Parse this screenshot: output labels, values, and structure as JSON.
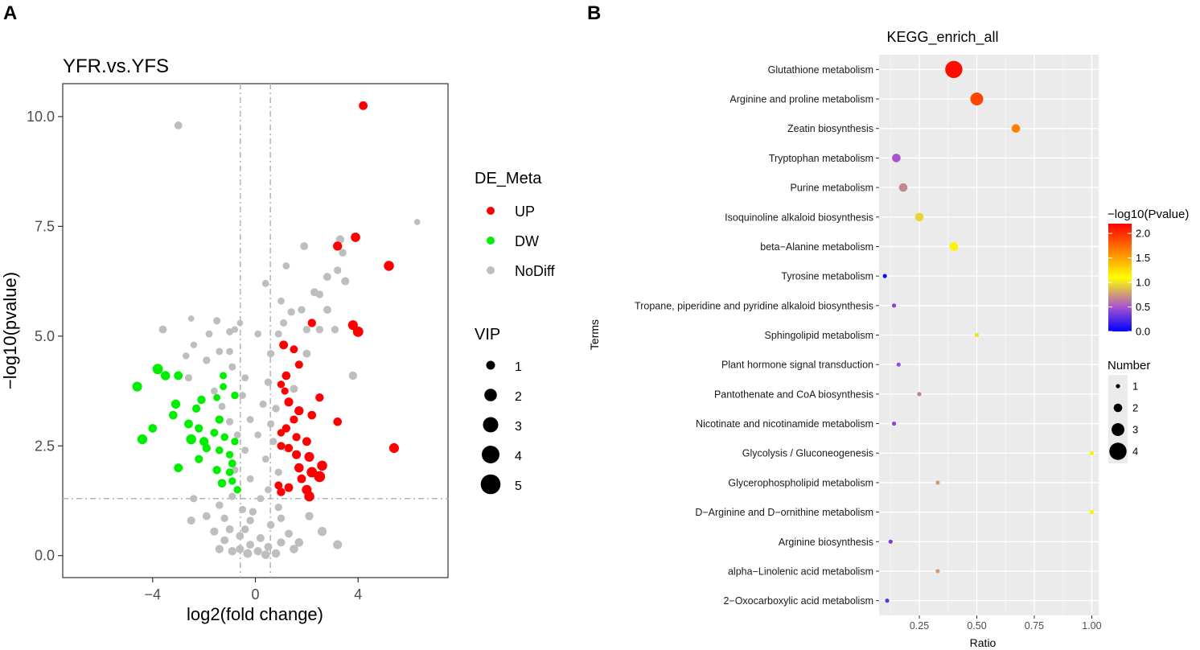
{
  "panel_labels": {
    "a": "A",
    "b": "B"
  },
  "colors": {
    "up": "#ff0000",
    "dw": "#00ee00",
    "nodiff": "#bebebe",
    "panel_bg": "#ebebeb",
    "grid": "#ffffff",
    "ref_line": "#b3b3b3",
    "gradient": [
      "#0000ff",
      "#aa55cc",
      "#ffff00",
      "#ff7f00",
      "#ff0000"
    ]
  },
  "chart_data": [
    {
      "type": "scatter",
      "title": "YFR.vs.YFS",
      "xlabel": "log2(fold change)",
      "ylabel": "−log10(pvalue)",
      "xlim": [
        -7.5,
        7.5
      ],
      "ylim": [
        -0.5,
        10.75
      ],
      "x_ticks": [
        -4,
        0,
        4
      ],
      "x_tick_labels": [
        "−4",
        "0",
        "4"
      ],
      "y_ticks": [
        0,
        2.5,
        5,
        7.5,
        10
      ],
      "y_tick_labels": [
        "0.0",
        "2.5",
        "5.0",
        "7.5",
        "10.0"
      ],
      "threshold_x": [
        -0.585,
        0.585
      ],
      "threshold_y": 1.301,
      "grid": false,
      "legend_color": {
        "title": "DE_Meta",
        "items": [
          {
            "label": "UP",
            "key": "UP"
          },
          {
            "label": "DW",
            "key": "DW"
          },
          {
            "label": "NoDiff",
            "key": "NoDiff"
          }
        ]
      },
      "legend_size": {
        "title": "VIP",
        "values": [
          1,
          2,
          3,
          4,
          5
        ],
        "labels": [
          "1",
          "2",
          "3",
          "4",
          "5"
        ]
      },
      "series": [
        {
          "name": "UP",
          "points": [
            [
              4.2,
              10.25,
              2.4
            ],
            [
              3.9,
              7.25,
              2.8
            ],
            [
              3.2,
              7.05,
              2.6
            ],
            [
              5.2,
              6.6,
              3.2
            ],
            [
              3.8,
              5.25,
              3.0
            ],
            [
              4.0,
              5.1,
              3.4
            ],
            [
              2.2,
              5.3,
              2.2
            ],
            [
              1.1,
              4.8,
              2.4
            ],
            [
              1.5,
              4.7,
              2.0
            ],
            [
              1.7,
              4.35,
              2.1
            ],
            [
              1.2,
              4.1,
              2.3
            ],
            [
              1.0,
              3.9,
              1.8
            ],
            [
              1.15,
              3.75,
              1.7
            ],
            [
              1.3,
              3.5,
              2.5
            ],
            [
              2.5,
              3.6,
              2.2
            ],
            [
              1.7,
              3.3,
              2.6
            ],
            [
              2.2,
              3.2,
              2.3
            ],
            [
              1.5,
              3.1,
              2.1
            ],
            [
              3.2,
              3.05,
              2.3
            ],
            [
              1.2,
              2.9,
              2.2
            ],
            [
              1.0,
              2.8,
              1.8
            ],
            [
              1.6,
              2.7,
              2.1
            ],
            [
              2.0,
              2.6,
              2.4
            ],
            [
              1.0,
              2.5,
              2.0
            ],
            [
              1.3,
              2.45,
              2.2
            ],
            [
              5.4,
              2.45,
              3.0
            ],
            [
              1.6,
              2.3,
              2.5
            ],
            [
              2.1,
              2.25,
              3.0
            ],
            [
              2.6,
              2.05,
              3.2
            ],
            [
              1.7,
              2.0,
              2.7
            ],
            [
              2.2,
              1.9,
              3.4
            ],
            [
              2.5,
              1.8,
              3.8
            ],
            [
              1.8,
              1.75,
              2.4
            ],
            [
              0.9,
              1.6,
              2.0
            ],
            [
              1.3,
              1.55,
              2.4
            ],
            [
              2.0,
              1.5,
              3.0
            ],
            [
              1.0,
              1.45,
              2.2
            ],
            [
              2.1,
              1.35,
              3.2
            ]
          ]
        },
        {
          "name": "DW",
          "points": [
            [
              -4.6,
              3.85,
              3.0
            ],
            [
              -3.8,
              4.25,
              3.4
            ],
            [
              -3.5,
              4.1,
              2.7
            ],
            [
              -3.0,
              4.1,
              2.4
            ],
            [
              -1.25,
              4.1,
              1.7
            ],
            [
              -1.25,
              3.85,
              1.6
            ],
            [
              -3.1,
              3.45,
              2.6
            ],
            [
              -2.1,
              3.55,
              2.2
            ],
            [
              -2.3,
              3.35,
              2.1
            ],
            [
              -0.8,
              3.65,
              1.8
            ],
            [
              -1.5,
              3.6,
              1.6
            ],
            [
              -3.2,
              3.2,
              2.3
            ],
            [
              -4.0,
              2.9,
              2.3
            ],
            [
              -1.4,
              3.1,
              2.2
            ],
            [
              -2.6,
              3.0,
              2.4
            ],
            [
              -2.2,
              2.9,
              2.2
            ],
            [
              -1.6,
              2.8,
              2.0
            ],
            [
              -1.2,
              2.7,
              1.9
            ],
            [
              -4.4,
              2.65,
              3.1
            ],
            [
              -2.5,
              2.65,
              3.2
            ],
            [
              -2.0,
              2.6,
              2.6
            ],
            [
              -1.9,
              2.45,
              2.2
            ],
            [
              -1.4,
              2.4,
              1.9
            ],
            [
              -1.0,
              2.3,
              1.8
            ],
            [
              -2.2,
              2.2,
              2.1
            ],
            [
              -0.9,
              2.1,
              2.0
            ],
            [
              -3.0,
              2.0,
              2.4
            ],
            [
              -1.5,
              1.95,
              2.2
            ],
            [
              -1.0,
              1.9,
              1.9
            ],
            [
              -0.9,
              1.7,
              1.8
            ],
            [
              -1.3,
              1.65,
              2.3
            ],
            [
              -0.7,
              1.5,
              1.8
            ],
            [
              -0.8,
              2.6,
              1.8
            ]
          ]
        },
        {
          "name": "NoDiff",
          "points": [
            [
              -3.0,
              9.8,
              2.0
            ],
            [
              6.3,
              7.6,
              1.2
            ],
            [
              3.3,
              7.2,
              2.2
            ],
            [
              1.9,
              7.05,
              2.0
            ],
            [
              3.4,
              6.9,
              1.8
            ],
            [
              1.2,
              6.6,
              1.6
            ],
            [
              3.2,
              6.5,
              1.8
            ],
            [
              2.8,
              6.35,
              2.0
            ],
            [
              0.4,
              6.2,
              1.6
            ],
            [
              3.5,
              6.25,
              2.1
            ],
            [
              2.3,
              6.0,
              2.0
            ],
            [
              2.5,
              5.95,
              1.8
            ],
            [
              1.0,
              5.8,
              1.6
            ],
            [
              1.8,
              5.6,
              1.8
            ],
            [
              1.4,
              5.55,
              1.8
            ],
            [
              2.8,
              5.6,
              2.0
            ],
            [
              1.1,
              5.3,
              1.7
            ],
            [
              2.0,
              5.15,
              1.8
            ],
            [
              2.5,
              5.15,
              1.8
            ],
            [
              3.1,
              5.15,
              1.8
            ],
            [
              0.9,
              5.05,
              1.6
            ],
            [
              -2.5,
              5.4,
              1.2
            ],
            [
              -3.6,
              5.15,
              2.0
            ],
            [
              -1.5,
              5.35,
              1.7
            ],
            [
              -1.0,
              5.1,
              1.6
            ],
            [
              -0.8,
              5.15,
              1.4
            ],
            [
              -0.6,
              5.3,
              1.2
            ],
            [
              0.1,
              5.05,
              1.5
            ],
            [
              -1.8,
              5.05,
              1.6
            ],
            [
              -2.4,
              4.8,
              1.4
            ],
            [
              -2.7,
              4.55,
              1.5
            ],
            [
              -1.9,
              4.45,
              1.8
            ],
            [
              -1.4,
              4.65,
              1.6
            ],
            [
              -1.0,
              4.65,
              1.6
            ],
            [
              0.6,
              4.6,
              1.8
            ],
            [
              2.0,
              4.6,
              2.0
            ],
            [
              3.8,
              4.1,
              2.2
            ],
            [
              -2.6,
              4.05,
              1.7
            ],
            [
              -1.6,
              3.75,
              1.6
            ],
            [
              -0.9,
              4.3,
              1.7
            ],
            [
              -0.4,
              4.05,
              1.6
            ],
            [
              0.5,
              3.95,
              1.8
            ],
            [
              1.5,
              3.8,
              2.0
            ],
            [
              -1.3,
              3.4,
              1.6
            ],
            [
              -0.5,
              3.65,
              1.6
            ],
            [
              0.3,
              3.45,
              1.7
            ],
            [
              0.8,
              3.35,
              1.8
            ],
            [
              -1.0,
              3.05,
              1.7
            ],
            [
              -0.2,
              3.1,
              1.6
            ],
            [
              0.6,
              3.0,
              1.7
            ],
            [
              -0.7,
              2.75,
              1.6
            ],
            [
              0.1,
              2.75,
              1.5
            ],
            [
              0.7,
              2.6,
              1.7
            ],
            [
              1.2,
              2.45,
              1.9
            ],
            [
              -0.4,
              2.4,
              1.6
            ],
            [
              0.4,
              2.2,
              1.6
            ],
            [
              -0.8,
              1.95,
              1.7
            ],
            [
              0.9,
              1.9,
              1.7
            ],
            [
              -0.2,
              1.75,
              1.6
            ],
            [
              0.5,
              1.5,
              1.6
            ],
            [
              -0.9,
              1.35,
              1.7
            ],
            [
              0.2,
              1.3,
              1.6
            ],
            [
              -1.4,
              1.15,
              1.8
            ],
            [
              0.9,
              1.1,
              1.8
            ],
            [
              -0.5,
              1.05,
              1.7
            ],
            [
              -2.4,
              1.3,
              1.7
            ],
            [
              -1.9,
              0.9,
              2.0
            ],
            [
              2.1,
              0.9,
              2.2
            ],
            [
              -0.2,
              0.8,
              1.8
            ],
            [
              0.6,
              0.7,
              1.9
            ],
            [
              -1.0,
              0.6,
              2.0
            ],
            [
              -1.6,
              0.55,
              2.1
            ],
            [
              1.3,
              0.5,
              2.0
            ],
            [
              -0.6,
              0.45,
              2.0
            ],
            [
              0.2,
              0.4,
              2.0
            ],
            [
              -1.2,
              0.35,
              2.0
            ],
            [
              1.0,
              0.3,
              2.1
            ],
            [
              -0.2,
              0.25,
              2.0
            ],
            [
              0.5,
              0.2,
              2.0
            ],
            [
              -0.6,
              0.15,
              2.1
            ],
            [
              -1.4,
              0.15,
              2.2
            ],
            [
              1.5,
              0.15,
              2.3
            ],
            [
              0.1,
              0.1,
              2.2
            ],
            [
              -0.9,
              0.1,
              2.2
            ],
            [
              0.8,
              0.05,
              2.2
            ],
            [
              -0.3,
              0.05,
              2.4
            ],
            [
              0.4,
              0.02,
              2.3
            ],
            [
              -2.5,
              0.8,
              2.1
            ],
            [
              3.2,
              0.25,
              2.5
            ],
            [
              2.6,
              0.55,
              2.6
            ],
            [
              1.7,
              0.3,
              2.3
            ],
            [
              -0.4,
              0.6,
              1.9
            ],
            [
              -0.1,
              1.0,
              1.8
            ],
            [
              -1.2,
              0.85,
              1.8
            ],
            [
              1.0,
              0.85,
              1.8
            ]
          ]
        }
      ]
    },
    {
      "type": "scatter",
      "title": "KEGG_enrich_all",
      "xlabel": "Ratio",
      "ylabel": "Terms",
      "xlim": [
        0.075,
        1.03
      ],
      "x_ticks": [
        0.25,
        0.5,
        0.75,
        1.0
      ],
      "x_tick_labels": [
        "0.25",
        "0.50",
        "0.75",
        "1.00"
      ],
      "grid": true,
      "color_legend": {
        "title": "−log10(Pvalue)",
        "range": [
          0,
          2.2
        ],
        "ticks": [
          0,
          0.5,
          1.0,
          1.5,
          2.0
        ],
        "tick_labels": [
          "0.0",
          "0.5",
          "1.0",
          "1.5",
          "2.0"
        ]
      },
      "size_legend": {
        "title": "Number",
        "values": [
          1,
          2,
          3,
          4
        ],
        "labels": [
          "1",
          "2",
          "3",
          "4"
        ]
      },
      "points": [
        {
          "term": "Glutathione metabolism",
          "ratio": 0.4,
          "number": 4,
          "neglog10p": 2.15
        },
        {
          "term": "Arginine and proline metabolism",
          "ratio": 0.5,
          "number": 3,
          "neglog10p": 1.9
        },
        {
          "term": "Zeatin biosynthesis",
          "ratio": 0.67,
          "number": 2,
          "neglog10p": 1.65
        },
        {
          "term": "Tryptophan metabolism",
          "ratio": 0.15,
          "number": 2,
          "neglog10p": 0.5
        },
        {
          "term": "Purine metabolism",
          "ratio": 0.18,
          "number": 2,
          "neglog10p": 0.68
        },
        {
          "term": "Isoquinoline alkaloid biosynthesis",
          "ratio": 0.25,
          "number": 2,
          "neglog10p": 0.95
        },
        {
          "term": "beta−Alanine metabolism",
          "ratio": 0.4,
          "number": 2,
          "neglog10p": 1.15
        },
        {
          "term": "Tyrosine metabolism",
          "ratio": 0.1,
          "number": 1,
          "neglog10p": 0.05
        },
        {
          "term": "Tropane, piperidine and pyridine alkaloid biosynthesis",
          "ratio": 0.14,
          "number": 1,
          "neglog10p": 0.4
        },
        {
          "term": "Sphingolipid metabolism",
          "ratio": 0.5,
          "number": 1,
          "neglog10p": 1.0
        },
        {
          "term": "Plant hormone signal transduction",
          "ratio": 0.16,
          "number": 1,
          "neglog10p": 0.45
        },
        {
          "term": "Pantothenate and CoA biosynthesis",
          "ratio": 0.25,
          "number": 1,
          "neglog10p": 0.65
        },
        {
          "term": "Nicotinate and nicotinamide metabolism",
          "ratio": 0.14,
          "number": 1,
          "neglog10p": 0.4
        },
        {
          "term": "Glycolysis / Gluconeogenesis",
          "ratio": 1.0,
          "number": 1,
          "neglog10p": 1.15
        },
        {
          "term": "Glycerophospholipid metabolism",
          "ratio": 0.33,
          "number": 1,
          "neglog10p": 0.75
        },
        {
          "term": "D−Arginine and D−ornithine metabolism",
          "ratio": 1.0,
          "number": 1,
          "neglog10p": 1.15
        },
        {
          "term": "Arginine biosynthesis",
          "ratio": 0.125,
          "number": 1,
          "neglog10p": 0.35
        },
        {
          "term": "alpha−Linolenic acid metabolism",
          "ratio": 0.33,
          "number": 1,
          "neglog10p": 0.75
        },
        {
          "term": "2−Oxocarboxylic acid metabolism",
          "ratio": 0.11,
          "number": 1,
          "neglog10p": 0.3
        }
      ]
    }
  ]
}
